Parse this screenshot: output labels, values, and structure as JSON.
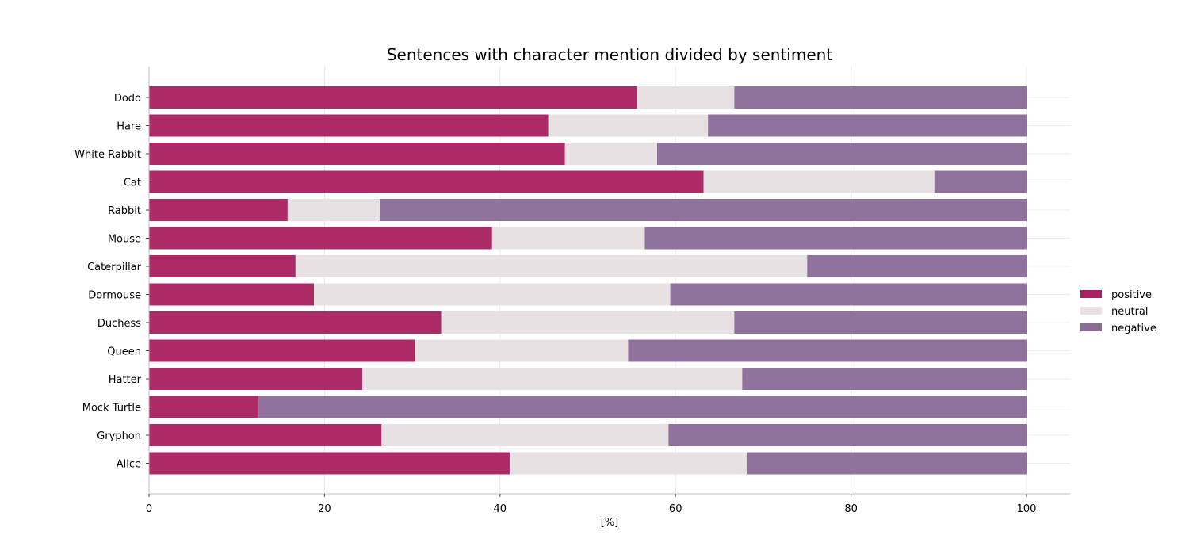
{
  "chart_data": {
    "type": "bar",
    "orientation": "horizontal",
    "stacked": true,
    "title": "Sentences with character mention divided by sentiment",
    "xlabel": "[%]",
    "ylabel": "",
    "xlim": [
      0,
      105
    ],
    "xticks": [
      0,
      20,
      40,
      60,
      80,
      100
    ],
    "grid": true,
    "legend_position": "right",
    "categories": [
      "Dodo",
      "Hare",
      "White Rabbit",
      "Cat",
      "Rabbit",
      "Mouse",
      "Caterpillar",
      "Dormouse",
      "Duchess",
      "Queen",
      "Hatter",
      "Mock Turtle",
      "Gryphon",
      "Alice"
    ],
    "series": [
      {
        "name": "positive",
        "color": "#a8205f",
        "values": [
          55.6,
          45.5,
          47.4,
          63.2,
          15.8,
          39.1,
          16.7,
          18.8,
          33.3,
          30.3,
          24.3,
          12.5,
          26.5,
          41.1
        ]
      },
      {
        "name": "neutral",
        "color": "#e8e1e3",
        "values": [
          11.1,
          18.2,
          10.5,
          26.3,
          10.5,
          17.4,
          58.3,
          40.6,
          33.4,
          24.3,
          43.3,
          0.0,
          32.7,
          27.1
        ]
      },
      {
        "name": "negative",
        "color": "#8a6c97",
        "values": [
          33.3,
          36.3,
          42.1,
          10.5,
          73.7,
          43.5,
          25.0,
          40.6,
          33.3,
          45.4,
          32.4,
          87.5,
          40.8,
          31.8
        ]
      }
    ]
  }
}
